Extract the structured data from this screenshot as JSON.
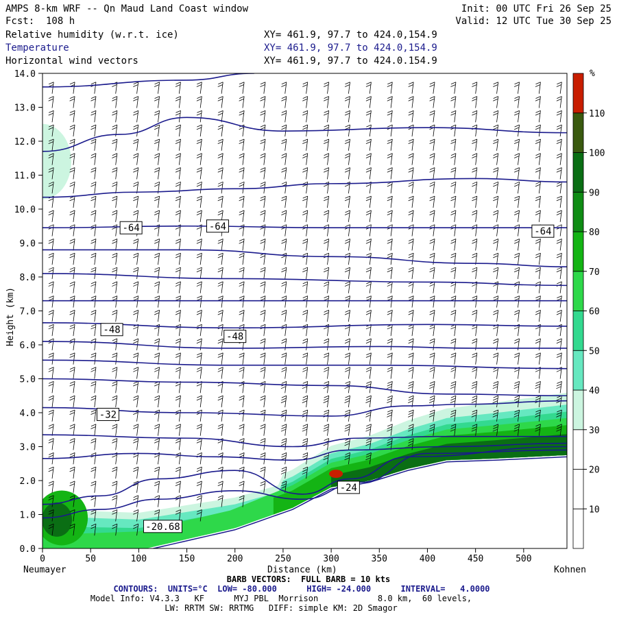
{
  "header": {
    "title": "AMPS 8-km WRF -- Qn Maud Land Coast window",
    "init": "Init: 00 UTC Fri 26 Sep 25",
    "fcst": "Fcst:  108 h",
    "valid": "Valid: 12 UTC Tue 30 Sep 25",
    "fields": [
      {
        "name": "Relative humidity (w.r.t. ice)",
        "xy": "XY= 461.9, 97.7 to 424.0,154.9"
      },
      {
        "name": "Temperature",
        "xy": "XY= 461.9, 97.7 to 424.0,154.9"
      },
      {
        "name": "Horizontal wind vectors",
        "xy": "XY= 461.9, 97.7 to 424.0.154.9"
      }
    ]
  },
  "colors": {
    "contour": "#1a1a8c",
    "rh_levels": [
      "#ffffff",
      "#ffffff",
      "#ffffff",
      "#ccf5e0",
      "#66e8c0",
      "#33d98f",
      "#2ed84a",
      "#14b414",
      "#0f8c14",
      "#0a6e14",
      "#3a5a0f",
      "#c81e00"
    ]
  },
  "chart_data": {
    "type": "heatmap",
    "title": "",
    "xlabel": "Distance (km)",
    "ylabel": "Height (km)",
    "xlim": [
      0,
      545
    ],
    "ylim": [
      0,
      14
    ],
    "xticks": [
      0,
      50,
      100,
      150,
      200,
      250,
      300,
      350,
      400,
      450,
      500
    ],
    "yticks": [
      "0.0",
      "1.0",
      "2.0",
      "3.0",
      "4.0",
      "5.0",
      "6.0",
      "7.0",
      "8.0",
      "9.0",
      "10.0",
      "11.0",
      "12.0",
      "13.0",
      "14.0"
    ],
    "x_endpoints": {
      "left": "Neumayer",
      "right": "Kohnen"
    },
    "colorbar": {
      "unit": "%",
      "labels": [
        "10",
        "20",
        "30",
        "40",
        "50",
        "60",
        "70",
        "80",
        "90",
        "100",
        "110"
      ]
    },
    "terrain_km": [
      [
        0,
        0.05
      ],
      [
        100,
        0.15
      ],
      [
        200,
        0.8
      ],
      [
        260,
        1.4
      ],
      [
        300,
        2.0
      ],
      [
        340,
        2.2
      ],
      [
        380,
        2.55
      ],
      [
        420,
        2.8
      ],
      [
        470,
        2.85
      ],
      [
        545,
        2.95
      ]
    ],
    "temperature_contours": [
      {
        "points": [
          [
            0,
            13.6
          ],
          [
            150,
            13.8
          ],
          [
            220,
            14.0
          ]
        ]
      },
      {
        "points": [
          [
            0,
            11.7
          ],
          [
            80,
            12.2
          ],
          [
            150,
            12.7
          ],
          [
            250,
            12.3
          ],
          [
            400,
            12.4
          ],
          [
            545,
            12.25
          ]
        ]
      },
      {
        "points": [
          [
            0,
            10.35
          ],
          [
            100,
            10.5
          ],
          [
            200,
            10.6
          ],
          [
            300,
            10.75
          ],
          [
            450,
            10.9
          ],
          [
            545,
            10.8
          ]
        ]
      },
      {
        "points": [
          [
            0,
            9.45
          ],
          [
            150,
            9.5
          ],
          [
            300,
            9.45
          ],
          [
            450,
            9.45
          ],
          [
            545,
            9.45
          ]
        ]
      },
      {
        "points": [
          [
            0,
            8.8
          ],
          [
            150,
            8.8
          ],
          [
            300,
            8.6
          ],
          [
            450,
            8.4
          ],
          [
            545,
            8.3
          ]
        ]
      },
      {
        "points": [
          [
            0,
            8.1
          ],
          [
            200,
            7.95
          ],
          [
            400,
            7.85
          ],
          [
            545,
            7.75
          ]
        ]
      },
      {
        "points": [
          [
            0,
            7.3
          ],
          [
            200,
            7.3
          ],
          [
            400,
            7.3
          ],
          [
            545,
            7.3
          ]
        ]
      },
      {
        "points": [
          [
            0,
            6.65
          ],
          [
            200,
            6.5
          ],
          [
            400,
            6.6
          ],
          [
            545,
            6.55
          ]
        ]
      },
      {
        "points": [
          [
            0,
            6.1
          ],
          [
            200,
            5.9
          ],
          [
            350,
            5.95
          ],
          [
            450,
            5.9
          ],
          [
            545,
            5.9
          ]
        ]
      },
      {
        "points": [
          [
            0,
            5.55
          ],
          [
            200,
            5.4
          ],
          [
            350,
            5.4
          ],
          [
            545,
            5.3
          ]
        ]
      },
      {
        "points": [
          [
            0,
            5.0
          ],
          [
            150,
            4.9
          ],
          [
            300,
            4.8
          ],
          [
            420,
            4.55
          ],
          [
            545,
            4.5
          ]
        ]
      },
      {
        "points": [
          [
            0,
            4.15
          ],
          [
            150,
            4.0
          ],
          [
            300,
            3.9
          ],
          [
            380,
            4.2
          ],
          [
            440,
            4.25
          ],
          [
            545,
            4.35
          ]
        ]
      },
      {
        "points": [
          [
            0,
            3.35
          ],
          [
            150,
            3.25
          ],
          [
            260,
            3.0
          ],
          [
            330,
            3.25
          ],
          [
            420,
            3.3
          ],
          [
            545,
            3.3
          ]
        ]
      },
      {
        "points": [
          [
            0,
            2.65
          ],
          [
            100,
            2.8
          ],
          [
            180,
            2.7
          ],
          [
            260,
            2.6
          ],
          [
            320,
            2.9
          ],
          [
            420,
            3.0
          ],
          [
            545,
            3.1
          ]
        ]
      },
      {
        "points": [
          [
            0,
            1.3
          ],
          [
            60,
            1.55
          ],
          [
            120,
            2.05
          ],
          [
            200,
            2.3
          ],
          [
            270,
            1.6
          ],
          [
            320,
            2.05
          ],
          [
            380,
            2.7
          ],
          [
            545,
            3.0
          ]
        ]
      },
      {
        "points": [
          [
            0,
            0.9
          ],
          [
            60,
            1.15
          ],
          [
            120,
            1.45
          ],
          [
            200,
            1.7
          ],
          [
            270,
            1.45
          ],
          [
            330,
            1.95
          ],
          [
            400,
            2.8
          ],
          [
            545,
            2.9
          ]
        ]
      }
    ],
    "contour_labels": [
      {
        "text": "-64",
        "x": 92,
        "y": 9.45
      },
      {
        "text": "-64",
        "x": 182,
        "y": 9.5
      },
      {
        "text": "-64",
        "x": 520,
        "y": 9.35
      },
      {
        "text": "-48",
        "x": 72,
        "y": 6.45
      },
      {
        "text": "-48",
        "x": 200,
        "y": 6.25
      },
      {
        "text": "-32",
        "x": 68,
        "y": 3.95
      },
      {
        "text": "-24",
        "x": 318,
        "y": 1.8
      },
      {
        "text": "-20.68",
        "x": 125,
        "y": 0.65
      }
    ],
    "wind_barbs": {
      "note_barb": "BARB VECTORS:  FULL BARB = 10 kts"
    }
  },
  "footer": {
    "barb": "BARB VECTORS:  FULL BARB = 10 kts",
    "contours": "CONTOURS:  UNITS=°C  LOW= -80.000      HIGH= -24.000      INTERVAL=   4.0000",
    "model1": "Model Info: V4.3.3   KF      MYJ PBL  Morrison            8.0 km,  60 levels,",
    "model2": "LW: RRTM SW: RRTMG   DIFF: simple KM: 2D Smagor"
  }
}
